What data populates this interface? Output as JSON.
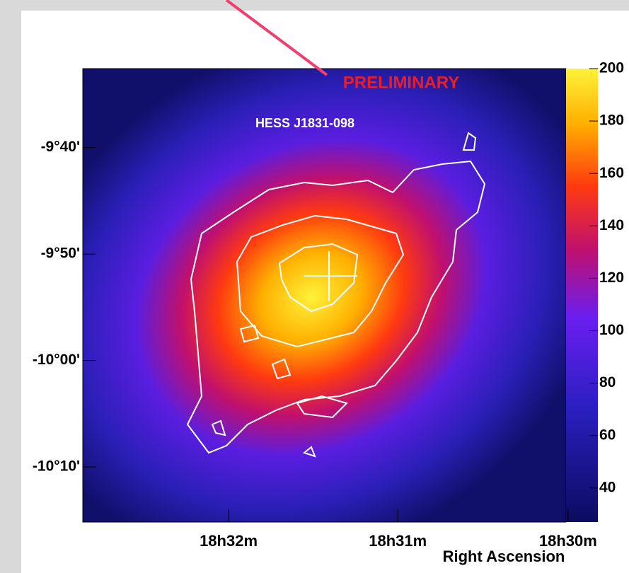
{
  "chart_data": {
    "type": "heatmap",
    "annotations": [
      "PRELIMINARY",
      "HESS J1831-098"
    ],
    "xlabel": "Right Ascension",
    "xlim": [
      18.5476,
      18.5002
    ],
    "xticks": [
      {
        "value": 18.5333,
        "label": "18h32m"
      },
      {
        "value": 18.5167,
        "label": "18h31m"
      },
      {
        "value": 18.5,
        "label": "18h30m"
      }
    ],
    "ylim": [
      -10.253,
      -9.543
    ],
    "yticks": [
      {
        "value": -9.6667,
        "label": "-9°40'"
      },
      {
        "value": -9.8333,
        "label": "-9°50'"
      },
      {
        "value": -10,
        "label": "-10°00'"
      },
      {
        "value": -10.1667,
        "label": "-10°10'"
      }
    ],
    "clim": [
      27,
      200
    ],
    "cticks": [
      40,
      60,
      80,
      100,
      120,
      140,
      160,
      180,
      200
    ]
  }
}
